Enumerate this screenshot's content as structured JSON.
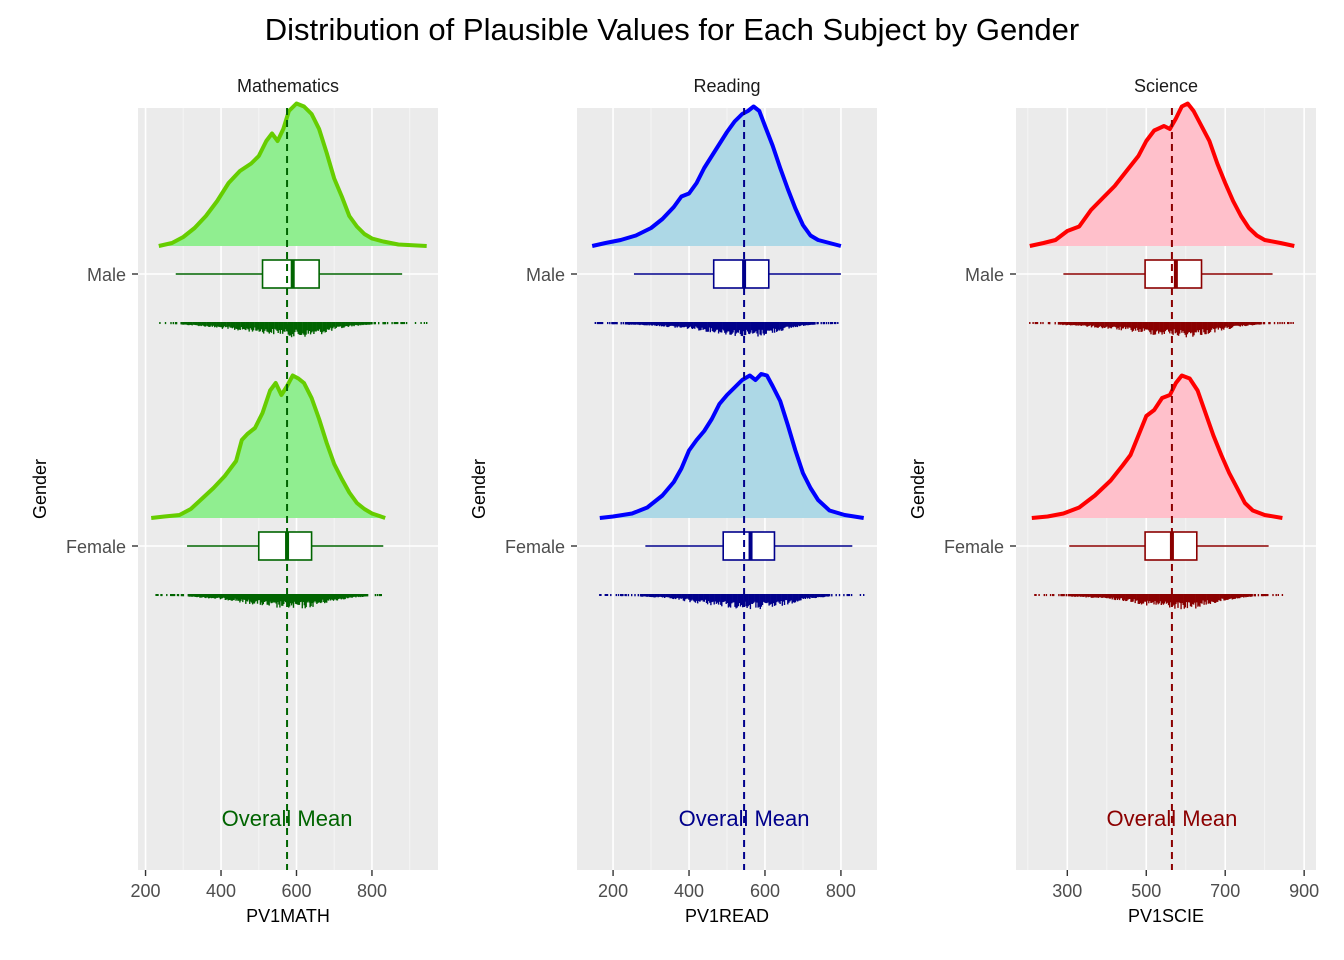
{
  "chart_data": {
    "title": "Distribution of Plausible Values for Each Subject by Gender",
    "type": "raincloud",
    "categories": [
      "Female",
      "Male"
    ],
    "grid": true,
    "panels": [
      {
        "strip": "Mathematics",
        "xlabel": "PV1MATH",
        "ylabel": "Gender",
        "xlim": [
          180,
          975
        ],
        "xticks": [
          200,
          400,
          600,
          800
        ],
        "mean": 575,
        "annotation": "Overall Mean",
        "colors": {
          "fill": "#90EE90",
          "line": "#66CD00",
          "dark": "#006400"
        },
        "groups": [
          {
            "name": "Male",
            "box": {
              "min": 280,
              "q1": 510,
              "median": 590,
              "q3": 660,
              "max": 880
            },
            "range": [
              235,
              945
            ],
            "density": [
              [
                235,
                0.0
              ],
              [
                270,
                0.02
              ],
              [
                300,
                0.06
              ],
              [
                330,
                0.12
              ],
              [
                360,
                0.2
              ],
              [
                390,
                0.3
              ],
              [
                420,
                0.42
              ],
              [
                450,
                0.5
              ],
              [
                480,
                0.55
              ],
              [
                500,
                0.6
              ],
              [
                520,
                0.7
              ],
              [
                535,
                0.75
              ],
              [
                550,
                0.7
              ],
              [
                565,
                0.78
              ],
              [
                580,
                0.9
              ],
              [
                600,
                0.95
              ],
              [
                620,
                0.93
              ],
              [
                640,
                0.88
              ],
              [
                660,
                0.78
              ],
              [
                680,
                0.62
              ],
              [
                700,
                0.45
              ],
              [
                720,
                0.33
              ],
              [
                740,
                0.2
              ],
              [
                760,
                0.13
              ],
              [
                780,
                0.08
              ],
              [
                800,
                0.05
              ],
              [
                830,
                0.03
              ],
              [
                870,
                0.01
              ],
              [
                945,
                0.0
              ]
            ]
          },
          {
            "name": "Female",
            "box": {
              "min": 310,
              "q1": 500,
              "median": 575,
              "q3": 640,
              "max": 830
            },
            "range": [
              215,
              835
            ],
            "density": [
              [
                215,
                0.0
              ],
              [
                250,
                0.01
              ],
              [
                290,
                0.02
              ],
              [
                320,
                0.06
              ],
              [
                350,
                0.13
              ],
              [
                380,
                0.2
              ],
              [
                410,
                0.28
              ],
              [
                440,
                0.38
              ],
              [
                455,
                0.52
              ],
              [
                470,
                0.56
              ],
              [
                490,
                0.6
              ],
              [
                510,
                0.7
              ],
              [
                530,
                0.85
              ],
              [
                545,
                0.9
              ],
              [
                560,
                0.82
              ],
              [
                575,
                0.88
              ],
              [
                590,
                0.95
              ],
              [
                605,
                0.93
              ],
              [
                620,
                0.9
              ],
              [
                640,
                0.8
              ],
              [
                660,
                0.66
              ],
              [
                680,
                0.5
              ],
              [
                700,
                0.36
              ],
              [
                720,
                0.26
              ],
              [
                740,
                0.17
              ],
              [
                760,
                0.1
              ],
              [
                780,
                0.06
              ],
              [
                800,
                0.03
              ],
              [
                835,
                0.0
              ]
            ]
          }
        ]
      },
      {
        "strip": "Reading",
        "xlabel": "PV1READ",
        "ylabel": "Gender",
        "xlim": [
          105,
          895
        ],
        "xticks": [
          200,
          400,
          600,
          800
        ],
        "mean": 545,
        "annotation": "Overall Mean",
        "colors": {
          "fill": "#ADD8E6",
          "line": "#0000FF",
          "dark": "#00008B"
        },
        "groups": [
          {
            "name": "Male",
            "box": {
              "min": 255,
              "q1": 465,
              "median": 545,
              "q3": 610,
              "max": 800
            },
            "range": [
              145,
              800
            ],
            "density": [
              [
                145,
                0.0
              ],
              [
                180,
                0.02
              ],
              [
                220,
                0.04
              ],
              [
                260,
                0.07
              ],
              [
                300,
                0.12
              ],
              [
                330,
                0.18
              ],
              [
                360,
                0.26
              ],
              [
                380,
                0.33
              ],
              [
                400,
                0.35
              ],
              [
                420,
                0.42
              ],
              [
                440,
                0.52
              ],
              [
                460,
                0.6
              ],
              [
                480,
                0.68
              ],
              [
                500,
                0.76
              ],
              [
                520,
                0.83
              ],
              [
                540,
                0.88
              ],
              [
                555,
                0.9
              ],
              [
                570,
                0.93
              ],
              [
                585,
                0.9
              ],
              [
                600,
                0.8
              ],
              [
                620,
                0.67
              ],
              [
                640,
                0.52
              ],
              [
                660,
                0.38
              ],
              [
                680,
                0.25
              ],
              [
                700,
                0.14
              ],
              [
                720,
                0.07
              ],
              [
                740,
                0.04
              ],
              [
                770,
                0.02
              ],
              [
                800,
                0.0
              ]
            ]
          },
          {
            "name": "Female",
            "box": {
              "min": 285,
              "q1": 490,
              "median": 562,
              "q3": 625,
              "max": 830
            },
            "range": [
              165,
              860
            ],
            "density": [
              [
                165,
                0.0
              ],
              [
                200,
                0.01
              ],
              [
                250,
                0.03
              ],
              [
                290,
                0.07
              ],
              [
                330,
                0.15
              ],
              [
                360,
                0.24
              ],
              [
                380,
                0.33
              ],
              [
                400,
                0.45
              ],
              [
                420,
                0.52
              ],
              [
                440,
                0.58
              ],
              [
                460,
                0.66
              ],
              [
                480,
                0.76
              ],
              [
                500,
                0.82
              ],
              [
                520,
                0.87
              ],
              [
                540,
                0.92
              ],
              [
                560,
                0.95
              ],
              [
                575,
                0.92
              ],
              [
                590,
                0.96
              ],
              [
                605,
                0.95
              ],
              [
                620,
                0.88
              ],
              [
                640,
                0.78
              ],
              [
                660,
                0.62
              ],
              [
                680,
                0.45
              ],
              [
                700,
                0.3
              ],
              [
                720,
                0.2
              ],
              [
                740,
                0.12
              ],
              [
                770,
                0.05
              ],
              [
                810,
                0.02
              ],
              [
                860,
                0.0
              ]
            ]
          }
        ]
      },
      {
        "strip": "Science",
        "xlabel": "PV1SCIE",
        "ylabel": "Gender",
        "xlim": [
          170,
          930
        ],
        "xticks": [
          300,
          500,
          700,
          900
        ],
        "mean": 565,
        "annotation": "Overall Mean",
        "colors": {
          "fill": "#FFC0CB",
          "line": "#FF0000",
          "dark": "#8B0000"
        },
        "groups": [
          {
            "name": "Male",
            "box": {
              "min": 290,
              "q1": 497,
              "median": 575,
              "q3": 640,
              "max": 820
            },
            "range": [
              205,
              875
            ],
            "density": [
              [
                205,
                0.0
              ],
              [
                240,
                0.02
              ],
              [
                270,
                0.04
              ],
              [
                300,
                0.1
              ],
              [
                330,
                0.13
              ],
              [
                360,
                0.24
              ],
              [
                390,
                0.32
              ],
              [
                420,
                0.4
              ],
              [
                450,
                0.5
              ],
              [
                480,
                0.6
              ],
              [
                500,
                0.7
              ],
              [
                520,
                0.77
              ],
              [
                545,
                0.8
              ],
              [
                560,
                0.78
              ],
              [
                575,
                0.85
              ],
              [
                590,
                0.93
              ],
              [
                605,
                0.95
              ],
              [
                620,
                0.9
              ],
              [
                640,
                0.8
              ],
              [
                660,
                0.7
              ],
              [
                680,
                0.55
              ],
              [
                700,
                0.42
              ],
              [
                720,
                0.3
              ],
              [
                740,
                0.2
              ],
              [
                760,
                0.12
              ],
              [
                780,
                0.07
              ],
              [
                800,
                0.04
              ],
              [
                840,
                0.02
              ],
              [
                875,
                0.0
              ]
            ]
          },
          {
            "name": "Female",
            "box": {
              "min": 305,
              "q1": 497,
              "median": 565,
              "q3": 628,
              "max": 810
            },
            "range": [
              210,
              845
            ],
            "density": [
              [
                210,
                0.0
              ],
              [
                250,
                0.01
              ],
              [
                290,
                0.03
              ],
              [
                330,
                0.07
              ],
              [
                370,
                0.15
              ],
              [
                410,
                0.25
              ],
              [
                440,
                0.35
              ],
              [
                460,
                0.42
              ],
              [
                480,
                0.55
              ],
              [
                500,
                0.68
              ],
              [
                520,
                0.72
              ],
              [
                540,
                0.8
              ],
              [
                560,
                0.82
              ],
              [
                575,
                0.9
              ],
              [
                590,
                0.95
              ],
              [
                610,
                0.93
              ],
              [
                630,
                0.85
              ],
              [
                650,
                0.7
              ],
              [
                670,
                0.55
              ],
              [
                690,
                0.42
              ],
              [
                710,
                0.3
              ],
              [
                730,
                0.2
              ],
              [
                750,
                0.1
              ],
              [
                770,
                0.05
              ],
              [
                800,
                0.02
              ],
              [
                845,
                0.0
              ]
            ]
          }
        ]
      }
    ]
  }
}
